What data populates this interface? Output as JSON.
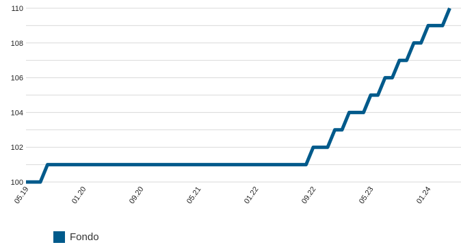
{
  "chart_data": {
    "type": "line",
    "x_tick_labels": [
      "05.19",
      "01.20",
      "09.20",
      "05.21",
      "01.22",
      "09.22",
      "05.23",
      "01.24"
    ],
    "ylim": [
      100,
      110
    ],
    "y_ticks": [
      100,
      102,
      104,
      106,
      108,
      110
    ],
    "grid": true,
    "legend_position": "bottom-left",
    "series": [
      {
        "name": "Fondo",
        "color": "#005a8b",
        "points": [
          {
            "x": "2019-05",
            "y": 100
          },
          {
            "x": "2019-07",
            "y": 100
          },
          {
            "x": "2019-08",
            "y": 101
          },
          {
            "x": "2022-08",
            "y": 101
          },
          {
            "x": "2022-09",
            "y": 102
          },
          {
            "x": "2022-11",
            "y": 102
          },
          {
            "x": "2022-12",
            "y": 103
          },
          {
            "x": "2023-01",
            "y": 103
          },
          {
            "x": "2023-02",
            "y": 104
          },
          {
            "x": "2023-04",
            "y": 104
          },
          {
            "x": "2023-05",
            "y": 105
          },
          {
            "x": "2023-06",
            "y": 105
          },
          {
            "x": "2023-07",
            "y": 106
          },
          {
            "x": "2023-08",
            "y": 106
          },
          {
            "x": "2023-09",
            "y": 107
          },
          {
            "x": "2023-10",
            "y": 107
          },
          {
            "x": "2023-11",
            "y": 108
          },
          {
            "x": "2023-12",
            "y": 108
          },
          {
            "x": "2024-01",
            "y": 109
          },
          {
            "x": "2024-03",
            "y": 109
          },
          {
            "x": "2024-04",
            "y": 110
          }
        ]
      }
    ]
  }
}
